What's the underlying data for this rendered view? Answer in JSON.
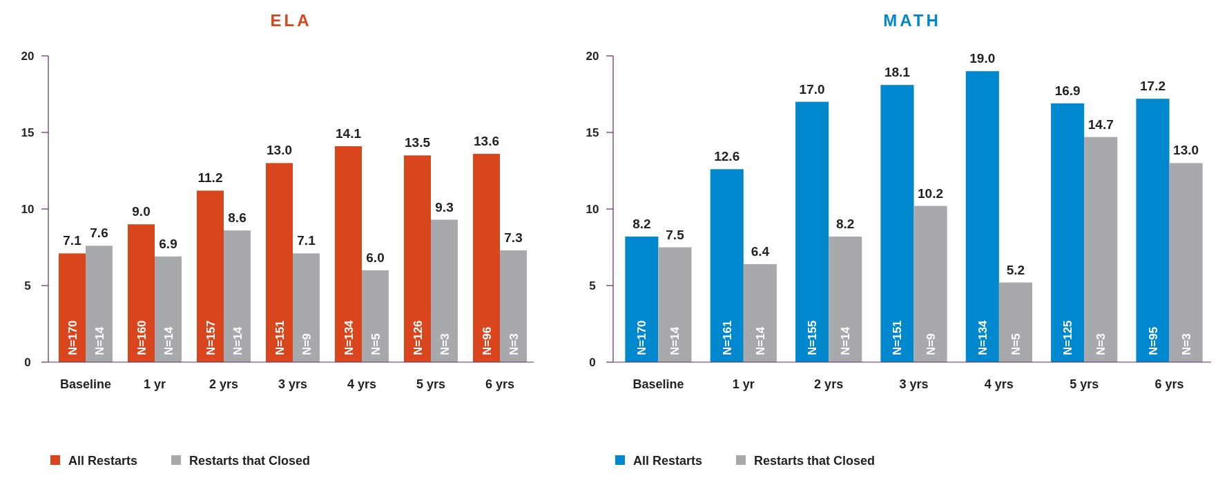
{
  "chart_data": [
    {
      "type": "bar",
      "title": "ELA",
      "categories": [
        "Baseline",
        "1 yr",
        "2 yrs",
        "3 yrs",
        "4 yrs",
        "5 yrs",
        "6 yrs"
      ],
      "ylim": [
        0,
        20
      ],
      "yticks": [
        0,
        5,
        10,
        15,
        20
      ],
      "grid": false,
      "legend": "bottom left",
      "series": [
        {
          "name": "All Restarts",
          "color": "#d9461e",
          "values": [
            7.1,
            9.0,
            11.2,
            13.0,
            14.1,
            13.5,
            13.6
          ],
          "value_labels": [
            "7.1",
            "9.0",
            "11.2",
            "13.0",
            "14.1",
            "13.5",
            "13.6"
          ]
        },
        {
          "name": "Restarts that Closed",
          "color": "#a7a9ac",
          "values": [
            7.6,
            6.9,
            8.6,
            7.1,
            6.0,
            9.3,
            7.3
          ],
          "value_labels": [
            "7.6",
            "6.9",
            "8.6",
            "7.1",
            "6.0",
            "9.3",
            "7.3"
          ]
        }
      ],
      "annotations": [
        "N=170",
        "N=14",
        "N=160",
        "N=14",
        "N=157",
        "N=14",
        "N=151",
        "N=9",
        "N=134",
        "N=5",
        "N=126",
        "N=3",
        "N=96",
        "N=3"
      ]
    },
    {
      "type": "bar",
      "title": "MATH",
      "categories": [
        "Baseline",
        "1 yr",
        "2 yrs",
        "3 yrs",
        "4 yrs",
        "5 yrs",
        "6 yrs"
      ],
      "ylim": [
        0,
        20
      ],
      "yticks": [
        0,
        5,
        10,
        15,
        20
      ],
      "grid": false,
      "legend": "bottom left",
      "series": [
        {
          "name": "All Restarts",
          "color": "#0088cf",
          "values": [
            8.2,
            12.6,
            17.0,
            18.1,
            19.0,
            16.9,
            17.2
          ],
          "value_labels": [
            "8.2",
            "12.6",
            "17.0",
            "18.1",
            "19.0",
            "16.9",
            "17.2"
          ]
        },
        {
          "name": "Restarts that Closed",
          "color": "#a7a9ac",
          "values": [
            7.5,
            6.4,
            8.2,
            10.2,
            5.2,
            14.7,
            13.0
          ],
          "value_labels": [
            "7.5",
            "6.4",
            "8.2",
            "10.2",
            "5.2",
            "14.7",
            "13.0"
          ]
        }
      ],
      "annotations": [
        "N=170",
        "N=14",
        "N=161",
        "N=14",
        "N=155",
        "N=14",
        "N=151",
        "N=9",
        "N=134",
        "N=5",
        "N=125",
        "N=3",
        "N=95",
        "N=3"
      ]
    }
  ]
}
